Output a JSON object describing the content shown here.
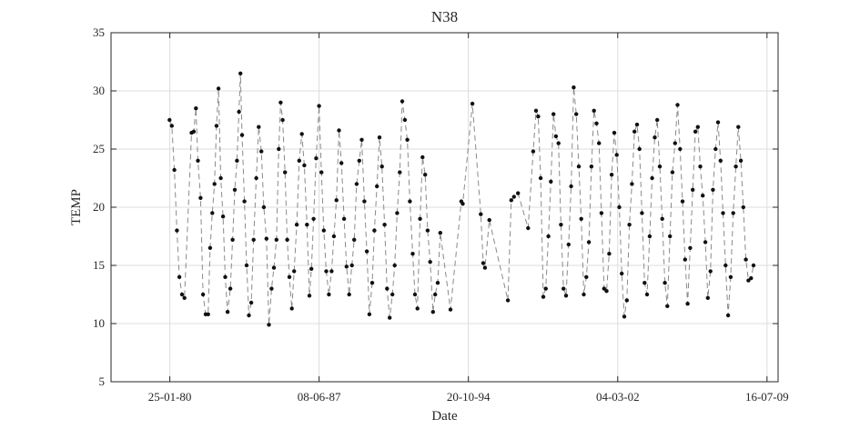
{
  "chart_data": {
    "type": "line",
    "title": "N38",
    "xlabel": "Date",
    "ylabel": "TEMP",
    "x_axis": {
      "type": "date",
      "range": [
        "1977-03-01",
        "2010-02-01"
      ],
      "ticks": [
        {
          "date": "1980-01-25",
          "label": "25-01-80"
        },
        {
          "date": "1987-06-08",
          "label": "08-06-87"
        },
        {
          "date": "1994-10-20",
          "label": "20-10-94"
        },
        {
          "date": "2002-03-04",
          "label": "04-03-02"
        },
        {
          "date": "2009-07-16",
          "label": "16-07-09"
        }
      ]
    },
    "y_axis": {
      "range": [
        5,
        35
      ],
      "ticks": [
        5,
        10,
        15,
        20,
        25,
        30,
        35
      ]
    },
    "grid": true,
    "series": [
      {
        "style": "dashed gray line with black circular markers",
        "points": [
          [
            "1980-01-20",
            27.5
          ],
          [
            "1980-03-01",
            27.0
          ],
          [
            "1980-04-15",
            23.2
          ],
          [
            "1980-06-01",
            18.0
          ],
          [
            "1980-07-15",
            14.0
          ],
          [
            "1980-09-01",
            12.5
          ],
          [
            "1980-10-15",
            12.2
          ],
          [
            "1981-02-20",
            26.4
          ],
          [
            "1981-04-01",
            26.5
          ],
          [
            "1981-05-10",
            28.5
          ],
          [
            "1981-06-15",
            24.0
          ],
          [
            "1981-08-01",
            20.8
          ],
          [
            "1981-09-15",
            12.5
          ],
          [
            "1981-11-01",
            10.8
          ],
          [
            "1981-12-15",
            10.8
          ],
          [
            "1982-01-20",
            16.5
          ],
          [
            "1982-03-01",
            19.5
          ],
          [
            "1982-04-10",
            22.0
          ],
          [
            "1982-05-15",
            27.0
          ],
          [
            "1982-06-20",
            30.2
          ],
          [
            "1982-08-01",
            22.5
          ],
          [
            "1982-09-10",
            19.2
          ],
          [
            "1982-10-20",
            14.0
          ],
          [
            "1982-12-01",
            11.0
          ],
          [
            "1983-01-20",
            13.0
          ],
          [
            "1983-03-01",
            17.2
          ],
          [
            "1983-04-10",
            21.5
          ],
          [
            "1983-05-20",
            24.0
          ],
          [
            "1983-06-25",
            28.2
          ],
          [
            "1983-07-20",
            31.5
          ],
          [
            "1983-08-20",
            26.2
          ],
          [
            "1983-10-01",
            20.5
          ],
          [
            "1983-11-10",
            15.0
          ],
          [
            "1983-12-20",
            10.7
          ],
          [
            "1984-02-01",
            11.8
          ],
          [
            "1984-03-15",
            17.2
          ],
          [
            "1984-05-01",
            22.5
          ],
          [
            "1984-06-15",
            26.9
          ],
          [
            "1984-08-01",
            24.8
          ],
          [
            "1984-09-15",
            20.0
          ],
          [
            "1984-11-01",
            17.3
          ],
          [
            "1984-12-15",
            9.9
          ],
          [
            "1985-02-01",
            13.0
          ],
          [
            "1985-03-15",
            14.8
          ],
          [
            "1985-05-01",
            17.2
          ],
          [
            "1985-06-10",
            25.0
          ],
          [
            "1985-07-15",
            29.0
          ],
          [
            "1985-08-20",
            27.5
          ],
          [
            "1985-10-01",
            23.0
          ],
          [
            "1985-11-10",
            17.2
          ],
          [
            "1985-12-20",
            14.0
          ],
          [
            "1986-02-01",
            11.3
          ],
          [
            "1986-03-15",
            14.5
          ],
          [
            "1986-05-01",
            18.5
          ],
          [
            "1986-06-15",
            24.0
          ],
          [
            "1986-08-01",
            26.3
          ],
          [
            "1986-09-15",
            23.6
          ],
          [
            "1986-11-01",
            18.5
          ],
          [
            "1986-12-15",
            12.4
          ],
          [
            "1987-01-20",
            14.7
          ],
          [
            "1987-03-01",
            19.0
          ],
          [
            "1987-04-15",
            24.2
          ],
          [
            "1987-06-08",
            28.7
          ],
          [
            "1987-07-20",
            23.0
          ],
          [
            "1987-09-01",
            18.0
          ],
          [
            "1987-10-15",
            14.5
          ],
          [
            "1987-12-01",
            12.5
          ],
          [
            "1988-01-20",
            14.5
          ],
          [
            "1988-03-01",
            17.5
          ],
          [
            "1988-04-15",
            20.6
          ],
          [
            "1988-06-01",
            26.6
          ],
          [
            "1988-07-15",
            23.8
          ],
          [
            "1988-09-01",
            19.0
          ],
          [
            "1988-10-15",
            14.9
          ],
          [
            "1988-12-01",
            12.5
          ],
          [
            "1989-01-20",
            15.0
          ],
          [
            "1989-03-01",
            17.2
          ],
          [
            "1989-04-15",
            22.0
          ],
          [
            "1989-06-01",
            24.0
          ],
          [
            "1989-07-15",
            25.8
          ],
          [
            "1989-09-01",
            20.5
          ],
          [
            "1989-10-15",
            16.2
          ],
          [
            "1989-12-01",
            10.8
          ],
          [
            "1990-01-20",
            13.5
          ],
          [
            "1990-03-01",
            18.0
          ],
          [
            "1990-04-15",
            21.8
          ],
          [
            "1990-06-01",
            26.0
          ],
          [
            "1990-07-15",
            23.5
          ],
          [
            "1990-09-01",
            18.5
          ],
          [
            "1990-10-15",
            13.0
          ],
          [
            "1990-12-01",
            10.5
          ],
          [
            "1991-01-20",
            12.5
          ],
          [
            "1991-03-01",
            15.0
          ],
          [
            "1991-04-15",
            19.5
          ],
          [
            "1991-06-01",
            23.0
          ],
          [
            "1991-07-15",
            29.1
          ],
          [
            "1991-09-01",
            27.5
          ],
          [
            "1991-10-15",
            25.8
          ],
          [
            "1991-12-01",
            20.5
          ],
          [
            "1992-01-20",
            16.0
          ],
          [
            "1992-03-01",
            12.5
          ],
          [
            "1992-04-15",
            11.3
          ],
          [
            "1992-06-01",
            19.0
          ],
          [
            "1992-07-15",
            24.3
          ],
          [
            "1992-09-01",
            22.8
          ],
          [
            "1992-10-15",
            18.0
          ],
          [
            "1992-12-01",
            15.3
          ],
          [
            "1993-01-20",
            11.0
          ],
          [
            "1993-03-01",
            12.5
          ],
          [
            "1993-04-15",
            13.5
          ],
          [
            "1993-06-01",
            17.8
          ],
          [
            "1993-12-01",
            11.2
          ],
          [
            "1994-06-15",
            20.5
          ],
          [
            "1994-07-10",
            20.3
          ],
          [
            "1995-01-01",
            28.9
          ],
          [
            "1995-06-01",
            19.4
          ],
          [
            "1995-07-15",
            15.2
          ],
          [
            "1995-08-15",
            14.8
          ],
          [
            "1995-11-01",
            18.9
          ],
          [
            "1996-10-01",
            12.0
          ],
          [
            "1996-12-01",
            20.6
          ],
          [
            "1997-01-20",
            20.9
          ],
          [
            "1997-04-01",
            21.2
          ],
          [
            "1997-10-01",
            18.2
          ],
          [
            "1998-01-01",
            24.8
          ],
          [
            "1998-02-20",
            28.3
          ],
          [
            "1998-04-01",
            27.8
          ],
          [
            "1998-05-15",
            22.5
          ],
          [
            "1998-07-01",
            12.3
          ],
          [
            "1998-08-15",
            13.0
          ],
          [
            "1998-10-01",
            17.5
          ],
          [
            "1998-11-15",
            22.2
          ],
          [
            "1999-01-01",
            28.0
          ],
          [
            "1999-02-15",
            26.1
          ],
          [
            "1999-04-01",
            25.5
          ],
          [
            "1999-05-15",
            18.5
          ],
          [
            "1999-07-01",
            13.0
          ],
          [
            "1999-08-15",
            12.4
          ],
          [
            "1999-10-01",
            16.8
          ],
          [
            "1999-11-15",
            21.8
          ],
          [
            "2000-01-01",
            30.3
          ],
          [
            "2000-02-15",
            28.0
          ],
          [
            "2000-04-01",
            23.5
          ],
          [
            "2000-05-15",
            19.0
          ],
          [
            "2000-07-01",
            12.5
          ],
          [
            "2000-08-15",
            14.0
          ],
          [
            "2000-10-01",
            17.0
          ],
          [
            "2000-11-15",
            23.5
          ],
          [
            "2001-01-01",
            28.3
          ],
          [
            "2001-02-15",
            27.2
          ],
          [
            "2001-04-01",
            25.5
          ],
          [
            "2001-05-15",
            19.5
          ],
          [
            "2001-07-01",
            13.0
          ],
          [
            "2001-08-15",
            12.8
          ],
          [
            "2001-10-01",
            16.0
          ],
          [
            "2001-11-15",
            22.8
          ],
          [
            "2002-01-01",
            26.4
          ],
          [
            "2002-02-15",
            24.5
          ],
          [
            "2002-04-01",
            20.0
          ],
          [
            "2002-05-15",
            14.3
          ],
          [
            "2002-07-01",
            10.6
          ],
          [
            "2002-08-15",
            12.0
          ],
          [
            "2002-10-01",
            18.5
          ],
          [
            "2002-11-15",
            22.0
          ],
          [
            "2003-01-01",
            26.5
          ],
          [
            "2003-02-15",
            27.1
          ],
          [
            "2003-04-01",
            25.0
          ],
          [
            "2003-05-15",
            19.5
          ],
          [
            "2003-07-01",
            13.5
          ],
          [
            "2003-08-15",
            12.5
          ],
          [
            "2003-10-01",
            17.5
          ],
          [
            "2003-11-15",
            22.5
          ],
          [
            "2004-01-01",
            26.0
          ],
          [
            "2004-02-15",
            27.5
          ],
          [
            "2004-04-01",
            23.5
          ],
          [
            "2004-05-15",
            19.0
          ],
          [
            "2004-07-01",
            13.5
          ],
          [
            "2004-08-15",
            11.5
          ],
          [
            "2004-10-01",
            17.5
          ],
          [
            "2004-11-15",
            23.0
          ],
          [
            "2005-01-01",
            25.5
          ],
          [
            "2005-02-15",
            28.8
          ],
          [
            "2005-04-01",
            25.0
          ],
          [
            "2005-05-15",
            20.5
          ],
          [
            "2005-07-01",
            15.5
          ],
          [
            "2005-08-15",
            11.7
          ],
          [
            "2005-10-01",
            16.5
          ],
          [
            "2005-11-15",
            21.5
          ],
          [
            "2006-01-01",
            26.5
          ],
          [
            "2006-02-15",
            26.9
          ],
          [
            "2006-04-01",
            23.5
          ],
          [
            "2006-05-15",
            21.0
          ],
          [
            "2006-07-01",
            17.0
          ],
          [
            "2006-08-15",
            12.2
          ],
          [
            "2006-10-01",
            14.5
          ],
          [
            "2006-11-15",
            21.5
          ],
          [
            "2007-01-01",
            25.0
          ],
          [
            "2007-02-15",
            27.3
          ],
          [
            "2007-04-01",
            24.0
          ],
          [
            "2007-05-15",
            19.5
          ],
          [
            "2007-07-01",
            15.0
          ],
          [
            "2007-08-15",
            10.7
          ],
          [
            "2007-10-01",
            14.0
          ],
          [
            "2007-11-15",
            19.5
          ],
          [
            "2008-01-01",
            23.5
          ],
          [
            "2008-02-15",
            26.9
          ],
          [
            "2008-04-01",
            24.0
          ],
          [
            "2008-05-15",
            20.0
          ],
          [
            "2008-07-01",
            15.5
          ],
          [
            "2008-08-15",
            13.7
          ],
          [
            "2008-10-01",
            13.9
          ],
          [
            "2008-11-15",
            15.0
          ]
        ]
      }
    ]
  }
}
